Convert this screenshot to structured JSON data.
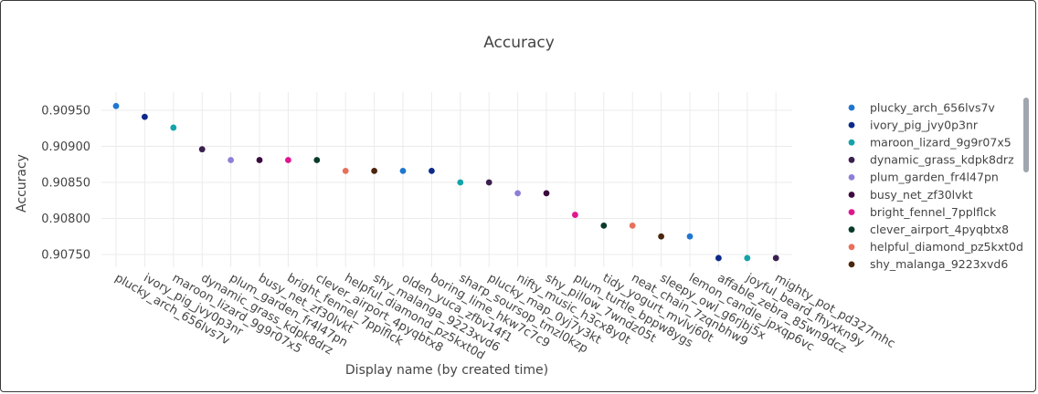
{
  "chart_data": {
    "type": "scatter",
    "title": "Accuracy",
    "xlabel": "Display name (by created time)",
    "ylabel": "Accuracy",
    "ylim": [
      0.9072,
      0.9099
    ],
    "yticks": [
      0.9075,
      0.908,
      0.9085,
      0.909,
      0.9095
    ],
    "ytick_labels": [
      "0.90750",
      "0.90800",
      "0.90850",
      "0.90900",
      "0.90950"
    ],
    "grid": true,
    "legend_position": "right",
    "points": [
      {
        "name": "plucky_arch_656lvs7v",
        "y": 0.90956,
        "color": "#1f77d0"
      },
      {
        "name": "ivory_pig_jvy0p3nr",
        "y": 0.90941,
        "color": "#0b2a8a"
      },
      {
        "name": "maroon_lizard_9g9r07x5",
        "y": 0.90926,
        "color": "#13a3a8"
      },
      {
        "name": "dynamic_grass_kdpk8drz",
        "y": 0.90896,
        "color": "#3a1f4f"
      },
      {
        "name": "plum_garden_fr4l47pn",
        "y": 0.90881,
        "color": "#8f7ed8"
      },
      {
        "name": "busy_net_zf30lvkt",
        "y": 0.90881,
        "color": "#3b0a3e"
      },
      {
        "name": "bright_fennel_7pplflck",
        "y": 0.90881,
        "color": "#e0168f"
      },
      {
        "name": "clever_airport_4pyqbtx8",
        "y": 0.90881,
        "color": "#0a3a2a"
      },
      {
        "name": "helpful_diamond_pz5kxt0d",
        "y": 0.90866,
        "color": "#e8705a"
      },
      {
        "name": "shy_malanga_9223xvd6",
        "y": 0.90866,
        "color": "#4a260c"
      },
      {
        "name": "olden_yuca_zfbv14f1",
        "y": 0.90866,
        "color": "#1f77d0"
      },
      {
        "name": "boring_lime_hkw7c7c9",
        "y": 0.90866,
        "color": "#0b2a8a"
      },
      {
        "name": "sharp_soursop_tmzl0kzp",
        "y": 0.9085,
        "color": "#13a3a8"
      },
      {
        "name": "plucky_map_0yj7y3kt",
        "y": 0.9085,
        "color": "#3a1f4f"
      },
      {
        "name": "nifty_music_h3cx8y0t",
        "y": 0.90835,
        "color": "#8f7ed8"
      },
      {
        "name": "shy_pillow_7wndz05t",
        "y": 0.90835,
        "color": "#3b0a3e"
      },
      {
        "name": "plum_turtle_bppw8ygs",
        "y": 0.90805,
        "color": "#e0168f"
      },
      {
        "name": "tidy_yogurt_mvlvj60t",
        "y": 0.9079,
        "color": "#0a3a2a"
      },
      {
        "name": "neat_chain_7zqnbhw9",
        "y": 0.9079,
        "color": "#e8705a"
      },
      {
        "name": "sleepy_owl_g6rjbj5x",
        "y": 0.90775,
        "color": "#4a260c"
      },
      {
        "name": "lemon_candle_jpxqp6vc",
        "y": 0.90775,
        "color": "#1f77d0"
      },
      {
        "name": "affable_zebra_85wn9dcz",
        "y": 0.90745,
        "color": "#0b2a8a"
      },
      {
        "name": "joyful_beard_fhyxkn9y",
        "y": 0.90745,
        "color": "#13a3a8"
      },
      {
        "name": "mighty_pot_pd327mhc",
        "y": 0.90745,
        "color": "#3a1f4f"
      }
    ],
    "legend_visible_count": 10
  }
}
